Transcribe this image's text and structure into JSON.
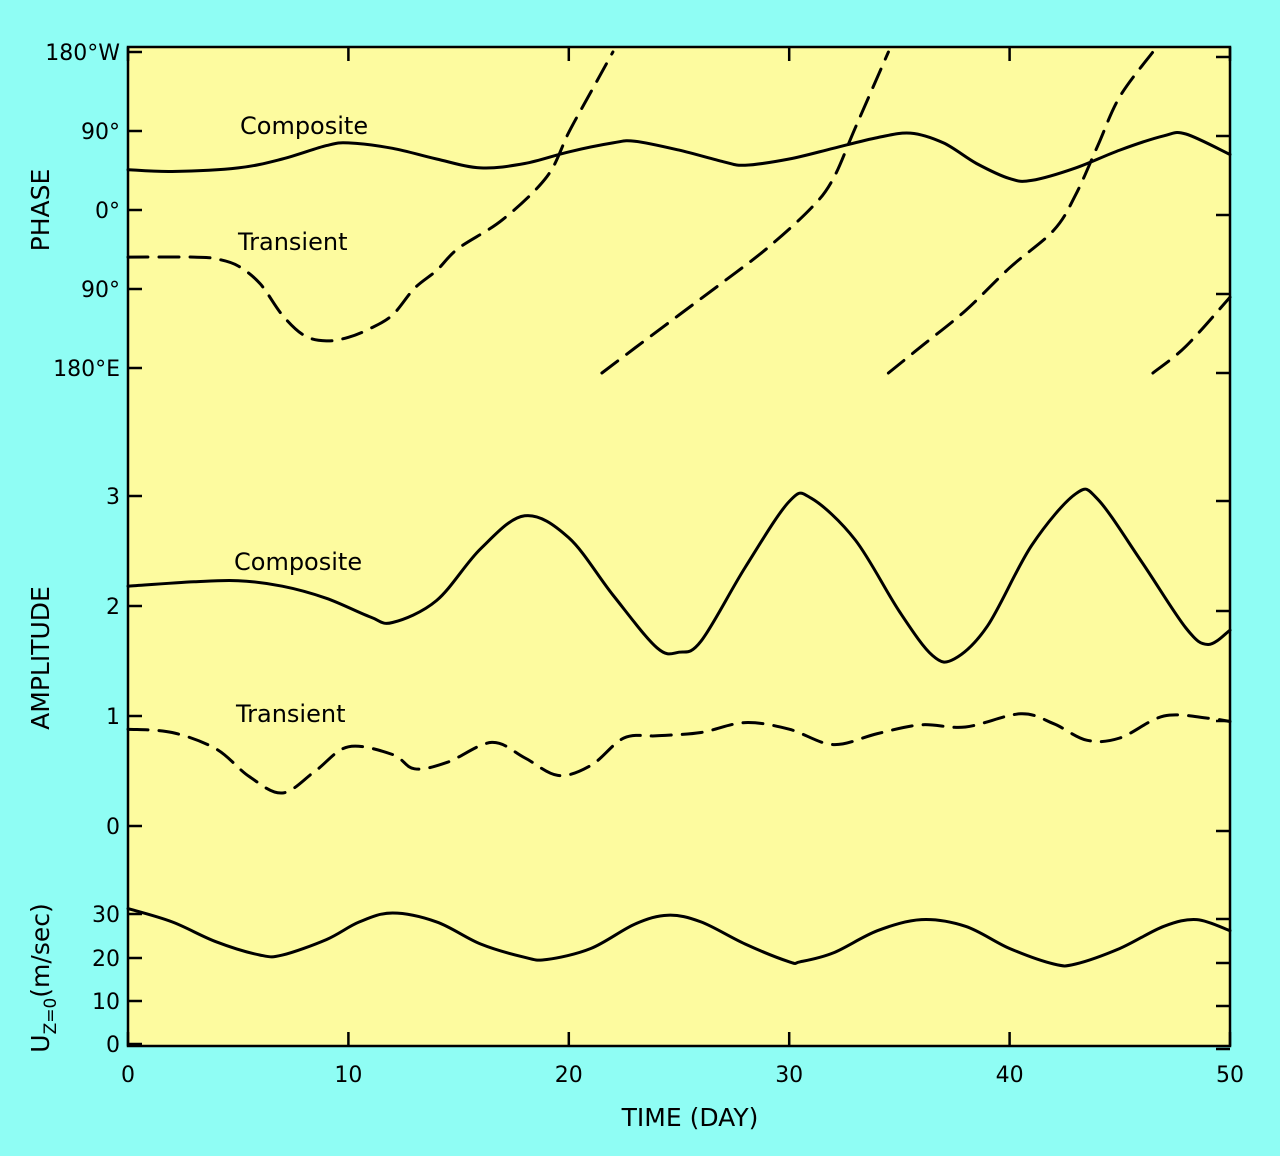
{
  "chart_data": {
    "type": "line",
    "xlabel": "TIME (DAY)",
    "xlim": [
      0,
      50
    ],
    "x_ticks": [
      "0",
      "10",
      "20",
      "30",
      "40",
      "50"
    ],
    "panels": [
      {
        "id": "phase",
        "ylabel": "PHASE",
        "y_ticks": [
          "180°W",
          "90°",
          "0°",
          "90°",
          "180°E"
        ],
        "ylim": [
          -180,
          180
        ],
        "y_unit_note": "degrees longitude; positive = west, negative = east",
        "series": [
          {
            "name": "Composite",
            "style": "solid",
            "points": [
              [
                0,
                48
              ],
              [
                2,
                46
              ],
              [
                5,
                50
              ],
              [
                7,
                60
              ],
              [
                9,
                75
              ],
              [
                10,
                78
              ],
              [
                12,
                72
              ],
              [
                14,
                60
              ],
              [
                16,
                50
              ],
              [
                18,
                55
              ],
              [
                20,
                68
              ],
              [
                22,
                78
              ],
              [
                23,
                80
              ],
              [
                25,
                70
              ],
              [
                27,
                57
              ],
              [
                28,
                53
              ],
              [
                30,
                60
              ],
              [
                32,
                72
              ],
              [
                34,
                84
              ],
              [
                35.5,
                89
              ],
              [
                37,
                78
              ],
              [
                38.5,
                55
              ],
              [
                40,
                38
              ],
              [
                41,
                36
              ],
              [
                43,
                50
              ],
              [
                45,
                70
              ],
              [
                47,
                86
              ],
              [
                48,
                88
              ],
              [
                50,
                65
              ]
            ]
          },
          {
            "name": "Transient",
            "style": "dashed",
            "segments": [
              [
                [
                  0,
                  -50
                ],
                [
                  3,
                  -50
                ],
                [
                  4,
                  -52
                ],
                [
                  5,
                  -60
                ],
                [
                  6,
                  -80
                ],
                [
                  7,
                  -115
                ],
                [
                  8,
                  -138
                ],
                [
                  9,
                  -144
                ],
                [
                  10,
                  -140
                ],
                [
                  11,
                  -130
                ],
                [
                  12,
                  -115
                ],
                [
                  13,
                  -85
                ],
                [
                  14,
                  -65
                ],
                [
                  15,
                  -40
                ],
                [
                  17,
                  -8
                ],
                [
                  19,
                  40
                ],
                [
                  20,
                  90
                ],
                [
                  21,
                  135
                ],
                [
                  22,
                  180
                ]
              ],
              [
                [
                  21.5,
                  -180
                ],
                [
                  23,
                  -152
                ],
                [
                  25,
                  -115
                ],
                [
                  27,
                  -78
                ],
                [
                  29,
                  -40
                ],
                [
                  31,
                  5
                ],
                [
                  32,
                  38
                ],
                [
                  33,
                  95
                ],
                [
                  34.5,
                  180
                ]
              ],
              [
                [
                  34.5,
                  -180
                ],
                [
                  36,
                  -150
                ],
                [
                  38,
                  -110
                ],
                [
                  40,
                  -62
                ],
                [
                  42,
                  -20
                ],
                [
                  43,
                  20
                ],
                [
                  44,
                  75
                ],
                [
                  45,
                  130
                ],
                [
                  46.5,
                  180
                ]
              ],
              [
                [
                  46.5,
                  -180
                ],
                [
                  48,
                  -150
                ],
                [
                  50,
                  -95
                ]
              ]
            ]
          }
        ]
      },
      {
        "id": "amplitude",
        "ylabel": "AMPLITUDE",
        "y_ticks": [
          "0",
          "1",
          "2",
          "3"
        ],
        "ylim": [
          0,
          3
        ],
        "series": [
          {
            "name": "Composite",
            "style": "solid",
            "points": [
              [
                0,
                2.18
              ],
              [
                3,
                2.22
              ],
              [
                5,
                2.23
              ],
              [
                7,
                2.18
              ],
              [
                9,
                2.07
              ],
              [
                11,
                1.9
              ],
              [
                12,
                1.85
              ],
              [
                14,
                2.05
              ],
              [
                16,
                2.52
              ],
              [
                18,
                2.82
              ],
              [
                20,
                2.62
              ],
              [
                22,
                2.1
              ],
              [
                24,
                1.62
              ],
              [
                25,
                1.58
              ],
              [
                26,
                1.68
              ],
              [
                28,
                2.35
              ],
              [
                30,
                2.95
              ],
              [
                31,
                2.98
              ],
              [
                33,
                2.6
              ],
              [
                35,
                1.95
              ],
              [
                36.5,
                1.55
              ],
              [
                37.5,
                1.52
              ],
              [
                39,
                1.82
              ],
              [
                41,
                2.55
              ],
              [
                43,
                3.02
              ],
              [
                44,
                2.97
              ],
              [
                46,
                2.4
              ],
              [
                48,
                1.8
              ],
              [
                49,
                1.65
              ],
              [
                50,
                1.78
              ]
            ]
          },
          {
            "name": "Transient",
            "style": "dashed",
            "points": [
              [
                0,
                0.88
              ],
              [
                2,
                0.85
              ],
              [
                4,
                0.7
              ],
              [
                5.5,
                0.45
              ],
              [
                7,
                0.3
              ],
              [
                8.5,
                0.5
              ],
              [
                10,
                0.72
              ],
              [
                12,
                0.65
              ],
              [
                13,
                0.52
              ],
              [
                14.5,
                0.58
              ],
              [
                16.5,
                0.76
              ],
              [
                18,
                0.62
              ],
              [
                19.5,
                0.46
              ],
              [
                21,
                0.55
              ],
              [
                22.5,
                0.8
              ],
              [
                24,
                0.82
              ],
              [
                26,
                0.85
              ],
              [
                28,
                0.94
              ],
              [
                30,
                0.88
              ],
              [
                32,
                0.74
              ],
              [
                34,
                0.84
              ],
              [
                36,
                0.92
              ],
              [
                38,
                0.9
              ],
              [
                40.5,
                1.02
              ],
              [
                42,
                0.93
              ],
              [
                43.5,
                0.78
              ],
              [
                45,
                0.8
              ],
              [
                47,
                1.0
              ],
              [
                49,
                0.98
              ],
              [
                50,
                0.95
              ]
            ]
          }
        ]
      },
      {
        "id": "u",
        "ylabel": "U",
        "ylabel_sub": "Z=0",
        "ylabel_unit": "(m/sec)",
        "y_ticks": [
          "0",
          "10",
          "20",
          "30"
        ],
        "ylim": [
          0,
          30
        ],
        "series": [
          {
            "name": "",
            "style": "solid",
            "points": [
              [
                0,
                31
              ],
              [
                2,
                28
              ],
              [
                4,
                23.5
              ],
              [
                6,
                20.5
              ],
              [
                7,
                20.5
              ],
              [
                9,
                24
              ],
              [
                10.5,
                28
              ],
              [
                12,
                30
              ],
              [
                14,
                28
              ],
              [
                16,
                23
              ],
              [
                18,
                20
              ],
              [
                19,
                19.5
              ],
              [
                21,
                22
              ],
              [
                23,
                27.5
              ],
              [
                24.5,
                29.5
              ],
              [
                26,
                28
              ],
              [
                28,
                23
              ],
              [
                30,
                19
              ],
              [
                30.5,
                19
              ],
              [
                32,
                21
              ],
              [
                34,
                26
              ],
              [
                36,
                28.5
              ],
              [
                38,
                27
              ],
              [
                40,
                22
              ],
              [
                42,
                18.5
              ],
              [
                43,
                18.5
              ],
              [
                45,
                22
              ],
              [
                47,
                27
              ],
              [
                48.5,
                28.5
              ],
              [
                50,
                26
              ]
            ]
          }
        ]
      }
    ],
    "curve_labels": [
      "Composite",
      "Transient",
      "Composite",
      "Transient"
    ]
  }
}
